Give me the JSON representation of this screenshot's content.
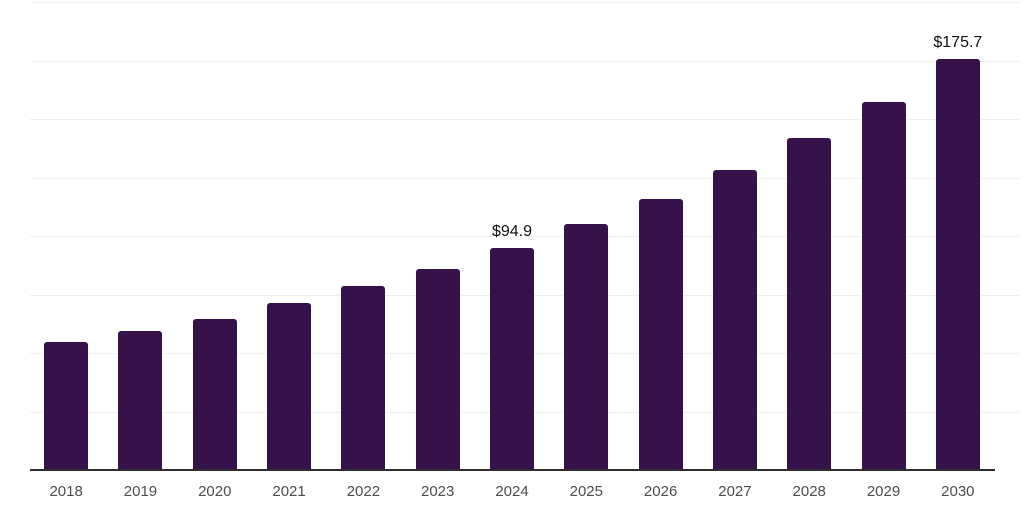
{
  "chart_data": {
    "type": "bar",
    "title": "",
    "xlabel": "",
    "ylabel": "",
    "categories": [
      "2018",
      "2019",
      "2020",
      "2021",
      "2022",
      "2023",
      "2024",
      "2025",
      "2026",
      "2027",
      "2028",
      "2029",
      "2030"
    ],
    "values": [
      54.5,
      59.2,
      64.6,
      71.3,
      78.7,
      85.8,
      94.9,
      105.0,
      115.7,
      128.0,
      141.8,
      157.4,
      175.7
    ],
    "data_labels": [
      {
        "category": "2024",
        "text": "$94.9"
      },
      {
        "category": "2030",
        "text": "$175.7"
      }
    ],
    "ylim": [
      0,
      200
    ],
    "gridline_step": 25,
    "grid": true,
    "legend": false,
    "y_axis_tick_labels_shown": false,
    "colors": {
      "bar": "#351249",
      "grid": "#f0f0f0",
      "axis": "#2e2e2e",
      "tick_label": "#4d4d4d",
      "data_label": "#111111",
      "background": "#ffffff"
    }
  }
}
